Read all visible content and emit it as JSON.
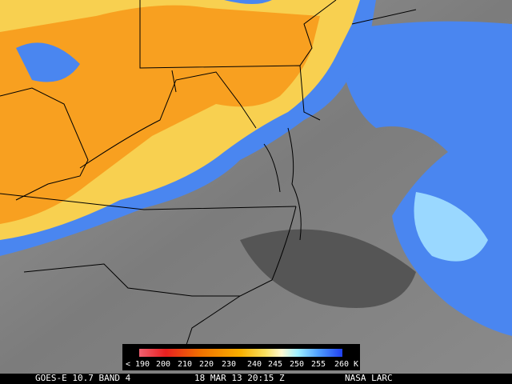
{
  "colorbar": {
    "labels": [
      "< 190",
      "200",
      "210",
      "220",
      "230",
      "240",
      "245",
      "250",
      "255",
      "260 K"
    ]
  },
  "caption": {
    "satellite": "GOES-E 10.7 BAND 4",
    "datetime": "18 MAR 13 20:15 Z",
    "source": "NASA LARC"
  }
}
